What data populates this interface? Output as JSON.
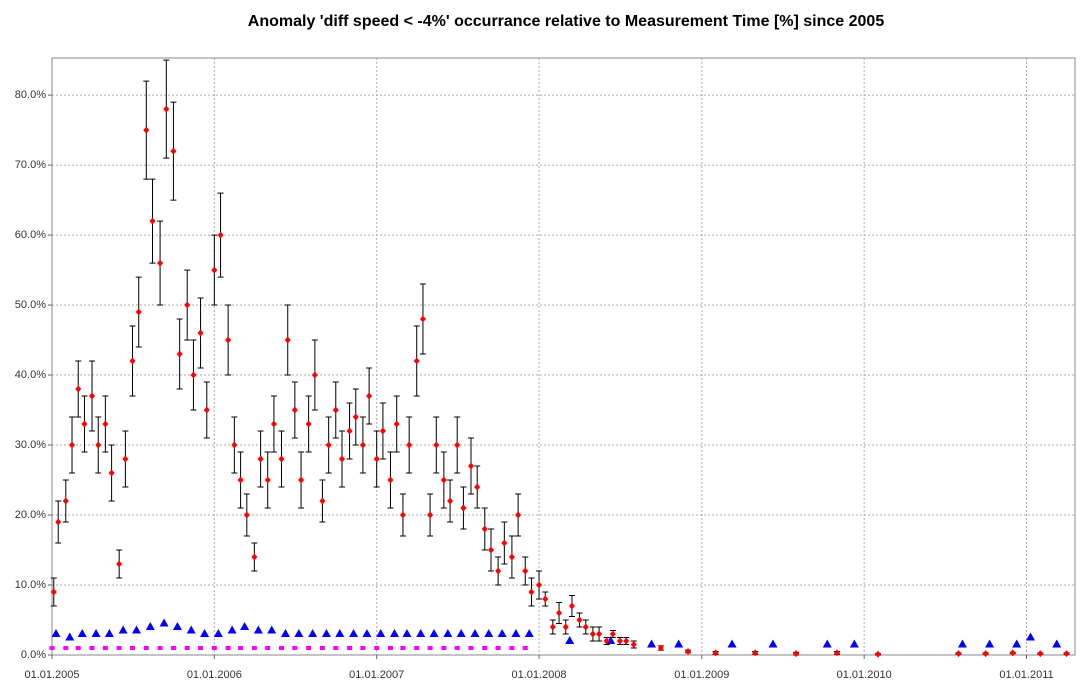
{
  "chart_data": {
    "type": "scatter",
    "title": "Anomaly 'diff speed < -4%' occurrance relative to Measurement Time [%] since 2005",
    "xlim": [
      "01.01.2005",
      "20.04.2011"
    ],
    "xticks": [
      "01.01.2005",
      "01.01.2006",
      "01.01.2007",
      "01.01.2008",
      "01.01.2009",
      "01.01.2010",
      "01.01.2011"
    ],
    "ylim": [
      0,
      85.3
    ],
    "yticks": [
      {
        "value": 0,
        "label": "0.0%"
      },
      {
        "value": 10,
        "label": "10.0%"
      },
      {
        "value": 20,
        "label": "20.0%"
      },
      {
        "value": 30,
        "label": "30.0%"
      },
      {
        "value": 40,
        "label": "40.0%"
      },
      {
        "value": 50,
        "label": "50.0%"
      },
      {
        "value": 60,
        "label": "60.0%"
      },
      {
        "value": 70,
        "label": "70.0%"
      },
      {
        "value": 80,
        "label": "80.0%"
      }
    ],
    "grid": true,
    "series": [
      {
        "color": "#ff00ff",
        "marker": "square",
        "x": [
          "01.01.2005",
          "01.02.2005",
          "01.03.2005",
          "01.04.2005",
          "01.05.2005",
          "01.06.2005",
          "01.07.2005",
          "01.08.2005",
          "01.09.2005",
          "01.10.2005",
          "01.11.2005",
          "01.12.2005",
          "01.01.2006",
          "01.02.2006",
          "01.03.2006",
          "01.04.2006",
          "01.05.2006",
          "01.06.2006",
          "01.07.2006",
          "01.08.2006",
          "01.09.2006",
          "01.10.2006",
          "01.11.2006",
          "01.12.2006",
          "01.01.2007",
          "01.02.2007",
          "01.03.2007",
          "01.04.2007",
          "01.05.2007",
          "01.06.2007",
          "01.07.2007",
          "01.08.2007",
          "01.09.2007",
          "01.10.2007",
          "01.11.2007",
          "01.12.2007"
        ],
        "values": [
          1,
          1,
          1,
          1,
          1,
          1,
          1,
          1,
          1,
          1,
          1,
          1,
          1,
          1,
          1,
          1,
          1,
          1,
          1,
          1,
          1,
          1,
          1,
          1,
          1,
          1,
          1,
          1,
          1,
          1,
          1,
          1,
          1,
          1,
          1,
          1
        ]
      },
      {
        "color": "#0000ff",
        "marker": "triangle",
        "x": [
          "10.01.2005",
          "10.02.2005",
          "10.03.2005",
          "10.04.2005",
          "10.05.2005",
          "10.06.2005",
          "10.07.2005",
          "10.08.2005",
          "10.09.2005",
          "10.10.2005",
          "10.11.2005",
          "10.12.2005",
          "10.01.2006",
          "10.02.2006",
          "10.03.2006",
          "10.04.2006",
          "10.05.2006",
          "10.06.2006",
          "10.07.2006",
          "10.08.2006",
          "10.09.2006",
          "10.10.2006",
          "10.11.2006",
          "10.12.2006",
          "10.01.2007",
          "10.02.2007",
          "10.03.2007",
          "10.04.2007",
          "10.05.2007",
          "10.06.2007",
          "10.07.2007",
          "10.08.2007",
          "10.09.2007",
          "10.10.2007",
          "10.11.2007",
          "10.12.2007",
          "10.03.2008",
          "10.06.2008",
          "10.09.2008",
          "10.11.2008",
          "10.03.2009",
          "10.06.2009",
          "10.10.2009",
          "10.12.2009",
          "10.08.2010",
          "10.10.2010",
          "10.12.2010",
          "10.01.2011",
          "10.03.2011"
        ],
        "values": [
          3,
          2.5,
          3,
          3,
          3,
          3.5,
          3.5,
          4,
          4.5,
          4,
          3.5,
          3,
          3,
          3.5,
          4,
          3.5,
          3.5,
          3,
          3,
          3,
          3,
          3,
          3,
          3,
          3,
          3,
          3,
          3,
          3,
          3,
          3,
          3,
          3,
          3,
          3,
          3,
          2,
          2,
          1.5,
          1.5,
          1.5,
          1.5,
          1.5,
          1.5,
          1.5,
          1.5,
          1.5,
          2.5,
          1.5
        ]
      },
      {
        "color": "#ff0000",
        "marker": "diamond",
        "error_color": "#000000",
        "x": [
          "05.01.2005",
          "15.01.2005",
          "01.02.2005",
          "15.02.2005",
          "01.03.2005",
          "15.03.2005",
          "01.04.2005",
          "15.04.2005",
          "01.05.2005",
          "15.05.2005",
          "01.06.2005",
          "15.06.2005",
          "01.07.2005",
          "15.07.2005",
          "01.08.2005",
          "15.08.2005",
          "01.09.2005",
          "15.09.2005",
          "01.10.2005",
          "15.10.2005",
          "01.11.2005",
          "15.11.2005",
          "01.12.2005",
          "15.12.2005",
          "01.01.2006",
          "15.01.2006",
          "01.02.2006",
          "15.02.2006",
          "01.03.2006",
          "15.03.2006",
          "01.04.2006",
          "15.04.2006",
          "01.05.2006",
          "15.05.2006",
          "01.06.2006",
          "15.06.2006",
          "01.07.2006",
          "15.07.2006",
          "01.08.2006",
          "15.08.2006",
          "01.09.2006",
          "15.09.2006",
          "01.10.2006",
          "15.10.2006",
          "01.11.2006",
          "15.11.2006",
          "01.12.2006",
          "15.12.2006",
          "01.01.2007",
          "15.01.2007",
          "01.02.2007",
          "15.02.2007",
          "01.03.2007",
          "15.03.2007",
          "01.04.2007",
          "15.04.2007",
          "01.05.2007",
          "15.05.2007",
          "01.06.2007",
          "15.06.2007",
          "01.07.2007",
          "15.07.2007",
          "01.08.2007",
          "15.08.2007",
          "01.09.2007",
          "15.09.2007",
          "01.10.2007",
          "15.10.2007",
          "01.11.2007",
          "15.11.2007",
          "01.12.2007",
          "15.12.2007",
          "01.01.2008",
          "15.01.2008",
          "01.02.2008",
          "15.02.2008",
          "01.03.2008",
          "15.03.2008",
          "01.04.2008",
          "15.04.2008",
          "01.05.2008",
          "15.05.2008",
          "01.06.2008",
          "15.06.2008",
          "01.07.2008",
          "15.07.2008",
          "01.08.2008",
          "01.10.2008",
          "01.12.2008",
          "01.02.2009",
          "01.05.2009",
          "01.08.2009",
          "01.11.2009",
          "01.02.2010",
          "01.08.2010",
          "01.10.2010",
          "01.12.2010",
          "01.02.2011",
          "01.04.2011"
        ],
        "values": [
          9,
          19,
          22,
          30,
          38,
          33,
          37,
          30,
          33,
          26,
          13,
          28,
          42,
          49,
          75,
          62,
          56,
          78,
          72,
          43,
          50,
          40,
          46,
          35,
          55,
          60,
          45,
          30,
          25,
          20,
          14,
          28,
          25,
          33,
          28,
          45,
          35,
          25,
          33,
          40,
          22,
          30,
          35,
          28,
          32,
          34,
          30,
          37,
          28,
          32,
          25,
          33,
          20,
          30,
          42,
          48,
          20,
          30,
          25,
          22,
          30,
          21,
          27,
          24,
          18,
          15,
          12,
          16,
          14,
          20,
          12,
          9,
          10,
          8,
          4,
          6,
          4,
          7,
          5,
          4,
          3,
          3,
          2,
          3,
          2,
          2,
          1.5,
          1,
          0.5,
          0.3,
          0.3,
          0.2,
          0.3,
          0.1,
          0.2,
          0.2,
          0.3,
          0.2,
          0.2
        ],
        "errors": [
          2,
          3,
          3,
          4,
          4,
          4,
          5,
          4,
          4,
          4,
          2,
          4,
          5,
          5,
          7,
          6,
          6,
          7,
          7,
          5,
          5,
          5,
          5,
          4,
          5,
          6,
          5,
          4,
          4,
          3,
          2,
          4,
          4,
          4,
          4,
          5,
          4,
          4,
          4,
          5,
          3,
          4,
          4,
          4,
          4,
          4,
          4,
          4,
          4,
          4,
          4,
          4,
          3,
          4,
          5,
          5,
          3,
          4,
          4,
          3,
          4,
          3,
          4,
          3,
          3,
          3,
          2,
          3,
          3,
          3,
          2,
          2,
          2,
          1,
          1,
          1.5,
          1,
          1.5,
          1,
          1,
          1,
          1,
          0.5,
          0.5,
          0.5,
          0.5,
          0.5,
          0.3,
          0.2,
          0.2,
          0.2,
          0.2,
          0.2,
          0.1,
          0.1,
          0.1,
          0.1,
          0.1,
          0.1
        ]
      }
    ]
  }
}
